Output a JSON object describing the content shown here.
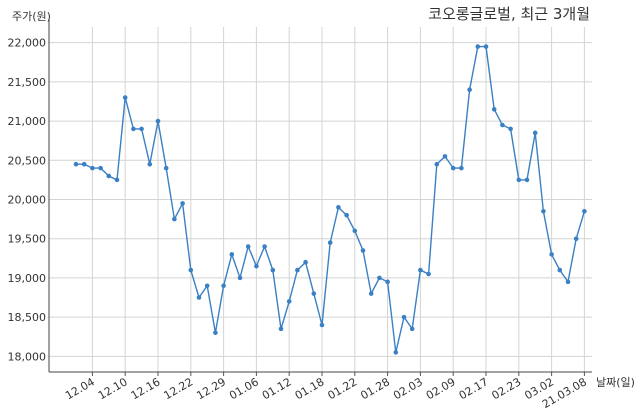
{
  "chart_data": {
    "type": "line",
    "title": "코오롱글로벌, 최근 3개월",
    "ylabel": "주가(원)",
    "xlabel": "날짜(일)",
    "ylim": [
      17800,
      22200
    ],
    "yticks": [
      18000,
      18500,
      19000,
      19500,
      20000,
      20500,
      21000,
      21500,
      22000
    ],
    "ytick_labels": [
      "18,000",
      "18,500",
      "19,000",
      "19,500",
      "20,000",
      "20,500",
      "21,000",
      "21,500",
      "22,000"
    ],
    "xtick_labels": [
      "12.04",
      "12.10",
      "12.16",
      "12.22",
      "12.29",
      "01.06",
      "01.12",
      "01.18",
      "01.22",
      "01.28",
      "02.03",
      "02.09",
      "02.17",
      "02.23",
      "03.02",
      "21.03.08"
    ],
    "xtick_indices": [
      2,
      6,
      10,
      14,
      18,
      22,
      26,
      30,
      34,
      38,
      42,
      46,
      50,
      54,
      58,
      62
    ],
    "grid": true,
    "series": [
      {
        "color": "#3b7fc4",
        "values": [
          20450,
          20450,
          20400,
          20400,
          20300,
          20250,
          21300,
          20900,
          20900,
          20450,
          21000,
          20400,
          19750,
          19950,
          19100,
          18750,
          18900,
          18300,
          18900,
          19300,
          19000,
          19400,
          19150,
          19400,
          19100,
          18350,
          18700,
          19100,
          19200,
          18800,
          18400,
          19450,
          19900,
          19800,
          19600,
          19350,
          18800,
          19000,
          18950,
          18050,
          18500,
          18350,
          19100,
          19050,
          20450,
          20550,
          20400,
          20400,
          21400,
          21950,
          21950,
          21150,
          20950,
          20900,
          20250,
          20250,
          20850,
          19850,
          19300,
          19100,
          18950,
          19500,
          19850
        ]
      }
    ]
  }
}
